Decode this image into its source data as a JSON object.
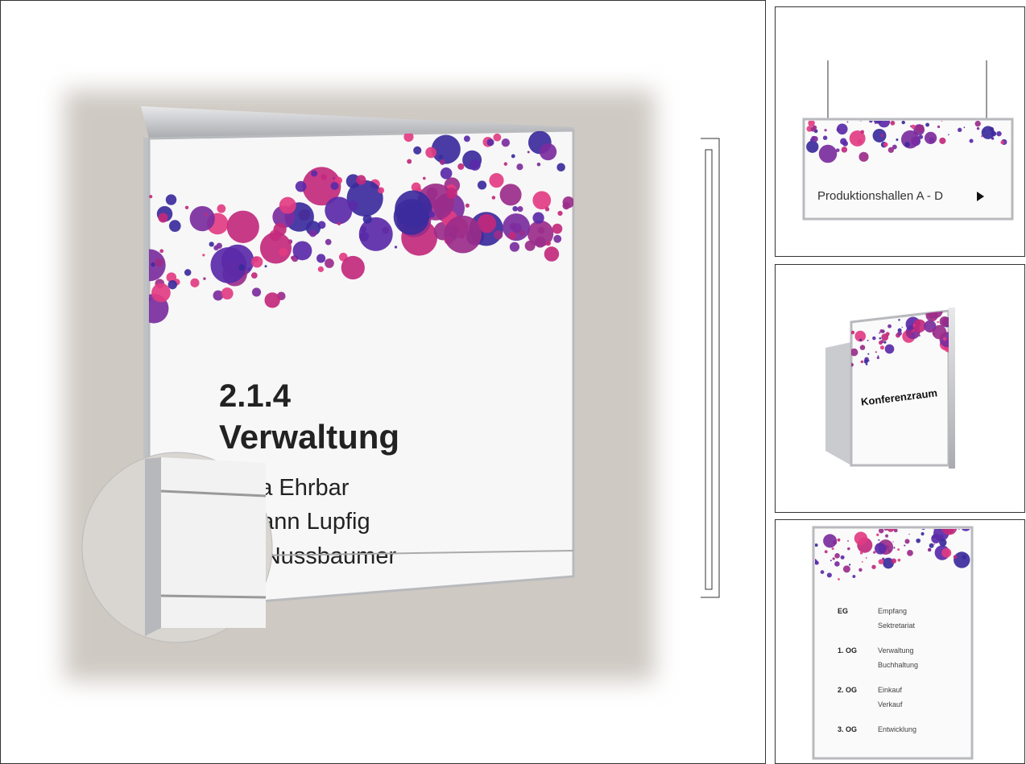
{
  "main_sign": {
    "number": "2.1.4",
    "department": "Verwaltung",
    "names": [
      "rina Ehrbar",
      "mann Lupfig",
      "r Nussbaumer"
    ]
  },
  "hanging_sign": {
    "text": "Produktionshallen A - D"
  },
  "projecting_sign": {
    "text": "Konferenzraum"
  },
  "directory_sign": {
    "rows": [
      {
        "floor": "EG",
        "entries": [
          "Empfang",
          "Sektretariat"
        ]
      },
      {
        "floor": "1. OG",
        "entries": [
          "Verwaltung",
          "Buchhaltung"
        ]
      },
      {
        "floor": "2. OG",
        "entries": [
          "Einkauf",
          "Verkauf"
        ]
      },
      {
        "floor": "3. OG",
        "entries": [
          "Entwicklung"
        ]
      }
    ]
  }
}
